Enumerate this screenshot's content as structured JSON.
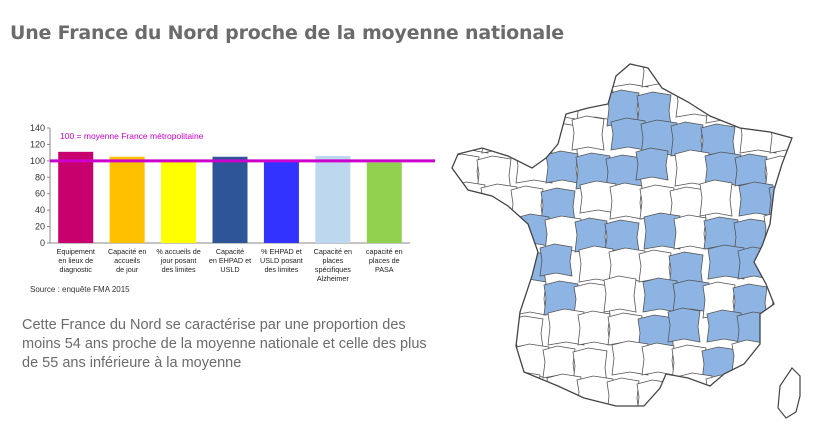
{
  "title": "Une France du Nord proche de la moyenne nationale",
  "chart_data": {
    "type": "bar",
    "categories": [
      [
        "Equipement",
        "en lieux de",
        "diagnostic"
      ],
      [
        "Capacité en",
        "accueils",
        "de jour"
      ],
      [
        "% accueils de",
        "jour posant",
        "des limites"
      ],
      [
        "Capacité",
        "en EHPAD et",
        "USLD"
      ],
      [
        "% EHPAD et",
        "USLD posant",
        "des limites"
      ],
      [
        "Capacité en",
        "places",
        "spécifiques",
        "Alzheimer"
      ],
      [
        "capacité en",
        "places de",
        "PASA"
      ]
    ],
    "values": [
      111,
      105,
      99,
      105,
      101,
      106,
      98
    ],
    "colors": [
      "#c8006e",
      "#ffc000",
      "#ffff00",
      "#2e5597",
      "#3333ff",
      "#bdd7ee",
      "#92d050"
    ],
    "reference_value": 100,
    "reference_label": "100 = moyenne France métropolitaine",
    "reference_color": "#cc00cc",
    "ylim": [
      0,
      140
    ],
    "yticks": [
      0,
      20,
      40,
      60,
      80,
      100,
      120,
      140
    ],
    "grid": false,
    "title": "",
    "xlabel": "",
    "ylabel": ""
  },
  "source": "Source : enquête FMA 2015",
  "body_text": "Cette France du Nord se caractérise par une proportion des moins 54 ans proche de la moyenne nationale et celle des plus de 55 ans inférieure à la moyenne",
  "map": {
    "highlight_color": "#8eb4e3",
    "default_color": "#ffffff",
    "border_color": "#555555"
  }
}
